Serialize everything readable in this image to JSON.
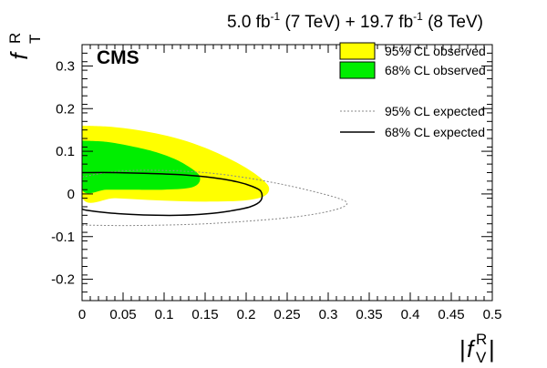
{
  "header": {
    "lumi_part1": "5.0 fb",
    "lumi_sup1": "-1",
    "lumi_part2": " (7 TeV) + 19.7 fb",
    "lumi_sup2": "-1",
    "lumi_part3": " (8 TeV)",
    "experiment": "CMS"
  },
  "chart_data": {
    "type": "contour",
    "xlabel": {
      "prefix": "|",
      "main": "f",
      "sup": "R",
      "sub": "V",
      "suffix": "|"
    },
    "ylabel": {
      "main": "f",
      "sup": "R",
      "sub": "T"
    },
    "xlim": [
      0,
      0.5
    ],
    "ylim": [
      -0.25,
      0.35
    ],
    "x_ticks": [
      "0",
      "0.05",
      "0.1",
      "0.15",
      "0.2",
      "0.25",
      "0.3",
      "0.35",
      "0.4",
      "0.45",
      "0.5"
    ],
    "y_ticks": [
      "-0.2",
      "-0.1",
      "0",
      "0.1",
      "0.2",
      "0.3"
    ],
    "colors": {
      "obs95": "#ffff00",
      "obs68": "#00ee00",
      "exp95": "#888888",
      "exp68": "#000000"
    },
    "series": [
      {
        "name": "95% CL observed",
        "style": "filled",
        "color": "#ffff00",
        "points": [
          [
            0,
            0.16
          ],
          [
            0.03,
            0.158
          ],
          [
            0.06,
            0.152
          ],
          [
            0.09,
            0.142
          ],
          [
            0.12,
            0.128
          ],
          [
            0.15,
            0.108
          ],
          [
            0.18,
            0.082
          ],
          [
            0.205,
            0.055
          ],
          [
            0.222,
            0.03
          ],
          [
            0.228,
            0.012
          ],
          [
            0.222,
            -0.005
          ],
          [
            0.2,
            -0.015
          ],
          [
            0.16,
            -0.018
          ],
          [
            0.12,
            -0.017
          ],
          [
            0.08,
            -0.014
          ],
          [
            0.04,
            -0.01
          ],
          [
            0,
            -0.008
          ]
        ]
      },
      {
        "name": "68% CL observed",
        "style": "filled",
        "color": "#00ee00",
        "points": [
          [
            0,
            0.125
          ],
          [
            0.03,
            0.122
          ],
          [
            0.06,
            0.112
          ],
          [
            0.09,
            0.098
          ],
          [
            0.115,
            0.08
          ],
          [
            0.133,
            0.06
          ],
          [
            0.143,
            0.043
          ],
          [
            0.142,
            0.025
          ],
          [
            0.13,
            0.014
          ],
          [
            0.1,
            0.01
          ],
          [
            0.06,
            0.01
          ],
          [
            0.03,
            0.01
          ],
          [
            0,
            0.01
          ]
        ]
      },
      {
        "name": "95% CL expected",
        "style": "dotted",
        "color": "#888888",
        "points": [
          [
            0,
            0.04
          ],
          [
            0.03,
            0.05
          ],
          [
            0.06,
            0.055
          ],
          [
            0.1,
            0.055
          ],
          [
            0.15,
            0.05
          ],
          [
            0.2,
            0.038
          ],
          [
            0.25,
            0.02
          ],
          [
            0.29,
            0.002
          ],
          [
            0.315,
            -0.012
          ],
          [
            0.323,
            -0.022
          ],
          [
            0.315,
            -0.033
          ],
          [
            0.29,
            -0.045
          ],
          [
            0.25,
            -0.056
          ],
          [
            0.2,
            -0.064
          ],
          [
            0.15,
            -0.07
          ],
          [
            0.1,
            -0.073
          ],
          [
            0.05,
            -0.074
          ],
          [
            0,
            -0.073
          ]
        ]
      },
      {
        "name": "68% CL expected",
        "style": "solid",
        "color": "#000000",
        "points": [
          [
            0,
            0.05
          ],
          [
            0.04,
            0.05
          ],
          [
            0.08,
            0.048
          ],
          [
            0.12,
            0.045
          ],
          [
            0.16,
            0.038
          ],
          [
            0.19,
            0.028
          ],
          [
            0.207,
            0.018
          ],
          [
            0.218,
            0.006
          ],
          [
            0.218,
            -0.015
          ],
          [
            0.205,
            -0.03
          ],
          [
            0.18,
            -0.04
          ],
          [
            0.15,
            -0.047
          ],
          [
            0.12,
            -0.05
          ],
          [
            0.09,
            -0.05
          ],
          [
            0.06,
            -0.048
          ],
          [
            0.03,
            -0.044
          ],
          [
            0.005,
            -0.038
          ],
          [
            0,
            -0.035
          ]
        ]
      }
    ],
    "legend": [
      {
        "label": "95% CL observed",
        "kind": "box",
        "color": "#ffff00"
      },
      {
        "label": "68% CL observed",
        "kind": "box",
        "color": "#00ee00"
      },
      {
        "label": "95% CL expected",
        "kind": "dotted",
        "color": "#888888"
      },
      {
        "label": "68% CL expected",
        "kind": "solid",
        "color": "#000000"
      }
    ],
    "legend_position": "top-right",
    "grid": false
  }
}
